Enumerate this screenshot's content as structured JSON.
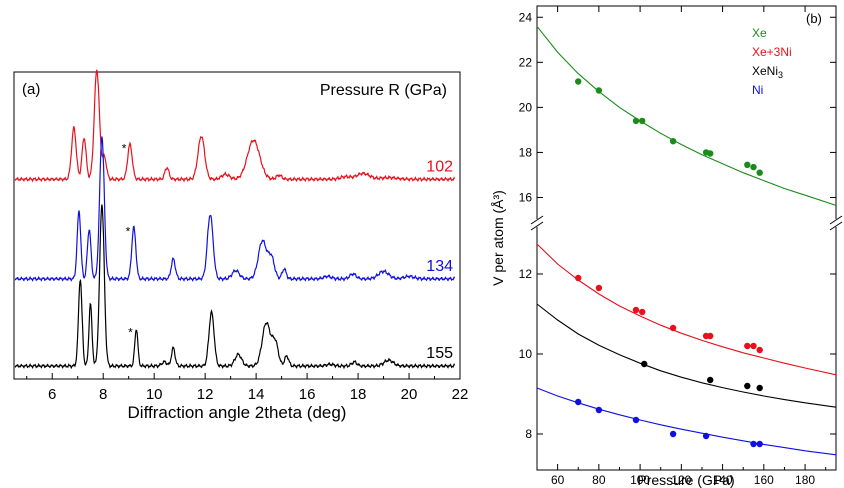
{
  "panel_a": {
    "label": "(a)",
    "legend_title": "Pressure R (GPa)",
    "xlabel": "Diffraction angle 2theta (deg)",
    "colors": {
      "p102": "#e8101a",
      "p134": "#1010e0",
      "p155": "#000000"
    }
  },
  "panel_b": {
    "label": "(b)",
    "xlabel": "Pressure (GPa)",
    "ylabel": "V per atom (Å³)",
    "legend": [
      {
        "name": "Xe",
        "color": "#1a8c1a"
      },
      {
        "name": "Xe+3Ni",
        "color": "#e8101a"
      },
      {
        "name": "XeNi3",
        "color": "#000000"
      },
      {
        "name": "Ni",
        "color": "#1010e0"
      }
    ]
  },
  "chart_data": [
    {
      "type": "line",
      "xlabel": "Diffraction angle 2theta (deg)",
      "ylabel": "",
      "xlim": [
        4.5,
        22
      ],
      "x_ticks": [
        6,
        8,
        10,
        12,
        14,
        16,
        18,
        20,
        22
      ],
      "legend_title": "Pressure R (GPa)",
      "series": [
        {
          "name": "102",
          "color": "#e8101a",
          "offset": 2.25,
          "peaks": [
            [
              6.85,
              0.62,
              0.09
            ],
            [
              7.25,
              0.5,
              0.08
            ],
            [
              7.75,
              1.32,
              0.1
            ],
            [
              8.05,
              0.26,
              0.08
            ],
            [
              9.05,
              0.42,
              0.09
            ],
            [
              10.5,
              0.14,
              0.08
            ],
            [
              11.85,
              0.52,
              0.13
            ],
            [
              12.8,
              0.06,
              0.15
            ],
            [
              13.9,
              0.47,
              0.24
            ],
            [
              14.9,
              0.05,
              0.1
            ],
            [
              17.5,
              0.03,
              0.2
            ],
            [
              18.2,
              0.07,
              0.25
            ],
            [
              19.2,
              0.02,
              0.3
            ]
          ],
          "asterisk_at": 8.9
        },
        {
          "name": "134",
          "color": "#1010e0",
          "offset": 1.05,
          "peaks": [
            [
              7.05,
              0.82,
              0.07
            ],
            [
              7.45,
              0.6,
              0.07
            ],
            [
              7.95,
              1.72,
              0.09
            ],
            [
              9.2,
              0.62,
              0.08
            ],
            [
              10.75,
              0.24,
              0.08
            ],
            [
              12.2,
              0.78,
              0.11
            ],
            [
              13.2,
              0.1,
              0.14
            ],
            [
              14.25,
              0.46,
              0.16
            ],
            [
              14.6,
              0.25,
              0.12
            ],
            [
              15.1,
              0.12,
              0.08
            ],
            [
              16.8,
              0.03,
              0.15
            ],
            [
              17.8,
              0.06,
              0.12
            ],
            [
              19.0,
              0.09,
              0.2
            ],
            [
              20.0,
              0.03,
              0.2
            ]
          ],
          "asterisk_at": 9.05
        },
        {
          "name": "155",
          "color": "#000000",
          "offset": 0.0,
          "peaks": [
            [
              7.1,
              1.05,
              0.07
            ],
            [
              7.5,
              0.75,
              0.06
            ],
            [
              7.95,
              1.95,
              0.09
            ],
            [
              9.3,
              0.45,
              0.06
            ],
            [
              10.4,
              0.05,
              0.1
            ],
            [
              10.75,
              0.22,
              0.07
            ],
            [
              12.25,
              0.65,
              0.1
            ],
            [
              13.3,
              0.14,
              0.13
            ],
            [
              14.4,
              0.52,
              0.16
            ],
            [
              14.75,
              0.28,
              0.12
            ],
            [
              15.2,
              0.12,
              0.08
            ],
            [
              16.9,
              0.02,
              0.15
            ],
            [
              17.85,
              0.05,
              0.1
            ],
            [
              19.2,
              0.07,
              0.18
            ]
          ],
          "asterisk_at": 9.15
        }
      ]
    },
    {
      "type": "scatter",
      "xlabel": "Pressure (GPa)",
      "ylabel": "V per atom (Å³)",
      "xlim": [
        50,
        195
      ],
      "x_ticks": [
        60,
        80,
        100,
        120,
        140,
        160,
        180
      ],
      "y_broken_axis": true,
      "ylim_upper": [
        15,
        24.5
      ],
      "y_ticks_upper": [
        16,
        18,
        20,
        22,
        24
      ],
      "ylim_lower": [
        7.1,
        13.2
      ],
      "y_ticks_lower": [
        8,
        10,
        12
      ],
      "series": [
        {
          "name": "Xe",
          "color": "#1a8c1a",
          "points": [
            [
              70,
              21.15
            ],
            [
              80,
              20.75
            ],
            [
              98,
              19.4
            ],
            [
              101,
              19.4
            ],
            [
              116,
              18.5
            ],
            [
              132,
              18.0
            ],
            [
              134,
              17.95
            ],
            [
              152,
              17.45
            ],
            [
              155,
              17.35
            ],
            [
              158,
              17.1
            ]
          ],
          "fit": [
            [
              50,
              23.6
            ],
            [
              60,
              22.45
            ],
            [
              70,
              21.5
            ],
            [
              80,
              20.7
            ],
            [
              90,
              20.0
            ],
            [
              100,
              19.4
            ],
            [
              110,
              18.85
            ],
            [
              120,
              18.35
            ],
            [
              130,
              17.9
            ],
            [
              140,
              17.5
            ],
            [
              150,
              17.1
            ],
            [
              160,
              16.75
            ],
            [
              170,
              16.4
            ],
            [
              180,
              16.1
            ],
            [
              195,
              15.65
            ]
          ]
        },
        {
          "name": "Xe+3Ni",
          "color": "#e8101a",
          "points": [
            [
              70,
              11.9
            ],
            [
              80,
              11.65
            ],
            [
              98,
              11.1
            ],
            [
              101,
              11.05
            ],
            [
              116,
              10.65
            ],
            [
              132,
              10.45
            ],
            [
              134,
              10.45
            ],
            [
              152,
              10.2
            ],
            [
              155,
              10.2
            ],
            [
              158,
              10.1
            ]
          ],
          "fit": [
            [
              50,
              12.75
            ],
            [
              60,
              12.25
            ],
            [
              70,
              11.85
            ],
            [
              80,
              11.5
            ],
            [
              90,
              11.2
            ],
            [
              100,
              10.95
            ],
            [
              110,
              10.72
            ],
            [
              120,
              10.52
            ],
            [
              130,
              10.34
            ],
            [
              140,
              10.18
            ],
            [
              150,
              10.03
            ],
            [
              160,
              9.9
            ],
            [
              170,
              9.77
            ],
            [
              180,
              9.65
            ],
            [
              195,
              9.48
            ]
          ]
        },
        {
          "name": "XeNi3",
          "color": "#000000",
          "points": [
            [
              102,
              9.75
            ],
            [
              134,
              9.35
            ],
            [
              152,
              9.2
            ],
            [
              158,
              9.15
            ]
          ],
          "fit": [
            [
              50,
              11.25
            ],
            [
              60,
              10.85
            ],
            [
              70,
              10.5
            ],
            [
              80,
              10.22
            ],
            [
              90,
              9.98
            ],
            [
              100,
              9.77
            ],
            [
              110,
              9.58
            ],
            [
              120,
              9.42
            ],
            [
              130,
              9.28
            ],
            [
              140,
              9.16
            ],
            [
              150,
              9.05
            ],
            [
              160,
              8.95
            ],
            [
              170,
              8.86
            ],
            [
              180,
              8.78
            ],
            [
              195,
              8.67
            ]
          ]
        },
        {
          "name": "Ni",
          "color": "#1010e0",
          "points": [
            [
              70,
              8.8
            ],
            [
              80,
              8.6
            ],
            [
              98,
              8.35
            ],
            [
              116,
              8.0
            ],
            [
              132,
              7.95
            ],
            [
              155,
              7.75
            ],
            [
              158,
              7.75
            ]
          ],
          "fit": [
            [
              50,
              9.15
            ],
            [
              60,
              8.95
            ],
            [
              70,
              8.78
            ],
            [
              80,
              8.62
            ],
            [
              90,
              8.48
            ],
            [
              100,
              8.35
            ],
            [
              110,
              8.23
            ],
            [
              120,
              8.12
            ],
            [
              130,
              8.02
            ],
            [
              140,
              7.92
            ],
            [
              150,
              7.83
            ],
            [
              160,
              7.74
            ],
            [
              170,
              7.66
            ],
            [
              180,
              7.58
            ],
            [
              195,
              7.48
            ]
          ]
        }
      ]
    }
  ]
}
